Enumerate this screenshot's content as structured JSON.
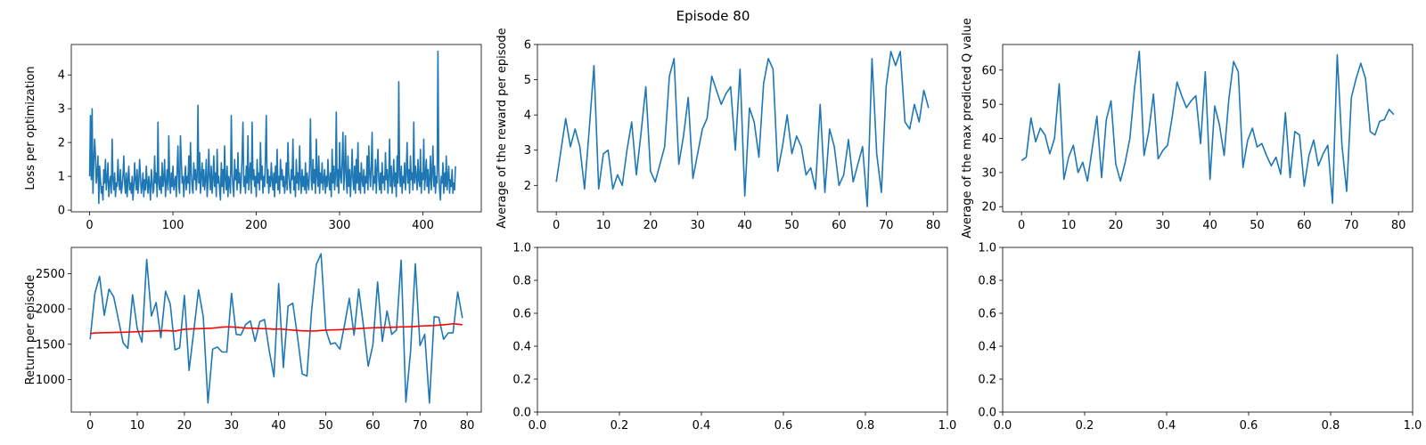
{
  "figure": {
    "suptitle": "Episode 80"
  },
  "style": {
    "series_color": "#1f77b4",
    "trend_color": "#ff0000"
  },
  "chart_data": [
    {
      "type": "line",
      "ylabel": "Loss per optimization",
      "xlim": [
        -22,
        470
      ],
      "ylim": [
        -0.05,
        4.9
      ],
      "xticks": [
        0,
        100,
        200,
        300,
        400
      ],
      "yticks": [
        0,
        1,
        2,
        3,
        4
      ],
      "series": [
        {
          "mode": "index",
          "values": [
            1.0,
            2.8,
            0.9,
            3.0,
            0.5,
            1.4,
            2.1,
            1.6,
            0.8,
            1.1,
            1.6,
            0.2,
            1.3,
            0.9,
            0.5,
            0.7,
            0.3,
            1.2,
            0.8,
            1.5,
            0.6,
            0.9,
            1.4,
            0.4,
            0.8,
            1.0,
            0.5,
            2.1,
            0.9,
            0.6,
            1.1,
            0.4,
            0.8,
            0.7,
            1.5,
            0.9,
            0.6,
            1.2,
            0.5,
            0.7,
            1.0,
            1.6,
            0.8,
            0.5,
            1.1,
            0.4,
            0.9,
            1.3,
            0.6,
            0.8,
            0.5,
            1.0,
            0.3,
            0.7,
            1.4,
            0.9,
            0.6,
            1.2,
            0.5,
            0.8,
            1.5,
            1.0,
            0.5,
            0.7,
            1.1,
            0.4,
            0.9,
            0.6,
            1.3,
            0.8,
            0.5,
            1.0,
            0.7,
            0.3,
            1.2,
            0.9,
            0.5,
            0.6,
            1.6,
            0.8,
            1.1,
            0.4,
            2.6,
            0.8,
            0.6,
            1.0,
            0.5,
            1.4,
            0.7,
            0.9,
            1.5,
            0.4,
            0.8,
            1.2,
            0.6,
            2.2,
            0.9,
            0.5,
            1.1,
            0.7,
            1.3,
            0.6,
            0.8,
            1.0,
            0.4,
            1.2,
            1.9,
            0.7,
            0.5,
            2.2,
            1.5,
            0.8,
            1.0,
            0.4,
            0.9,
            1.3,
            0.6,
            1.0,
            0.8,
            1.6,
            0.5,
            2.0,
            1.1,
            0.7,
            0.5,
            1.4,
            0.9,
            1.2,
            0.6,
            1.0,
            3.1,
            0.8,
            1.7,
            0.5,
            1.0,
            1.4,
            0.7,
            1.2,
            0.6,
            0.9,
            1.5,
            0.4,
            0.8,
            1.8,
            1.0,
            0.6,
            1.3,
            0.5,
            0.9,
            1.6,
            0.7,
            1.1,
            0.4,
            1.8,
            0.8,
            1.0,
            0.6,
            0.3,
            1.4,
            0.7,
            1.2,
            0.5,
            1.9,
            0.9,
            0.6,
            1.3,
            0.4,
            1.0,
            0.8,
            0.5,
            2.8,
            1.1,
            0.7,
            0.4,
            1.5,
            0.9,
            1.2,
            0.6,
            1.7,
            0.8,
            1.1,
            0.5,
            0.9,
            1.6,
            2.6,
            0.7,
            1.0,
            0.5,
            1.3,
            0.8,
            2.2,
            0.6,
            1.1,
            1.4,
            0.5,
            2.6,
            0.9,
            1.2,
            0.7,
            1.0,
            0.4,
            1.5,
            0.8,
            1.1,
            0.6,
            2.0,
            0.9,
            1.3,
            0.5,
            1.0,
            0.7,
            1.6,
            2.8,
            0.8,
            1.2,
            0.5,
            1.0,
            0.7,
            1.4,
            0.9,
            0.6,
            1.1,
            0.4,
            1.3,
            0.8,
            1.8,
            0.6,
            1.0,
            0.5,
            1.5,
            0.9,
            1.2,
            0.7,
            1.0,
            0.5,
            0.8,
            1.4,
            0.6,
            2.0,
            1.1,
            0.7,
            0.5,
            1.2,
            0.9,
            2.1,
            0.6,
            1.0,
            0.4,
            1.5,
            0.8,
            1.1,
            0.6,
            1.9,
            0.9,
            0.5,
            1.2,
            0.7,
            1.0,
            0.6,
            1.4,
            0.5,
            1.1,
            0.8,
            0.6,
            1.3,
            2.7,
            0.9,
            0.6,
            1.5,
            0.8,
            1.2,
            0.5,
            2.1,
            1.0,
            0.7,
            1.6,
            0.5,
            1.1,
            0.8,
            1.4,
            0.6,
            0.9,
            1.2,
            0.5,
            1.0,
            0.7,
            1.5,
            0.9,
            0.6,
            1.1,
            0.4,
            1.8,
            0.8,
            1.3,
            0.6,
            1.0,
            2.9,
            0.7,
            1.2,
            0.5,
            2.0,
            1.0,
            0.8,
            1.4,
            2.3,
            0.6,
            1.1,
            2.2,
            0.9,
            0.5,
            1.6,
            0.7,
            1.2,
            0.4,
            1.0,
            1.8,
            0.9,
            0.6,
            1.3,
            0.5,
            1.5,
            0.8,
            2.0,
            0.6,
            1.1,
            0.5,
            1.4,
            0.9,
            0.7,
            1.2,
            0.5,
            1.0,
            0.8,
            1.6,
            0.6,
            1.9,
            1.1,
            0.7,
            1.3,
            2.3,
            0.6,
            1.0,
            0.8,
            1.5,
            0.5,
            1.2,
            1.8,
            0.9,
            0.6,
            1.1,
            0.5,
            1.4,
            0.8,
            1.0,
            0.6,
            1.7,
            0.9,
            1.2,
            0.5,
            1.0,
            2.1,
            0.7,
            1.3,
            0.5,
            0.9,
            1.5,
            0.7,
            1.1,
            0.4,
            1.6,
            0.8,
            3.8,
            1.0,
            0.7,
            1.3,
            0.5,
            1.0,
            0.8,
            1.4,
            0.6,
            1.1,
            2.0,
            0.8,
            1.2,
            0.5,
            1.6,
            0.9,
            1.1,
            0.6,
            2.6,
            0.8,
            1.3,
            1.0,
            0.6,
            1.5,
            0.9,
            0.7,
            1.8,
            0.5,
            1.1,
            0.9,
            2.1,
            0.6,
            1.0,
            1.5,
            0.7,
            1.2,
            0.5,
            0.9,
            1.6,
            0.6,
            1.1,
            1.9,
            0.7,
            1.3,
            0.5,
            1.0,
            0.8,
            4.7,
            1.2,
            0.6,
            0.3,
            1.0,
            0.8,
            1.4,
            0.5,
            1.1,
            0.7,
            1.6,
            0.6,
            1.0,
            1.3,
            0.5,
            0.9,
            0.7,
            1.2,
            0.5,
            0.8,
            0.6,
            1.3
          ]
        }
      ]
    },
    {
      "type": "line",
      "ylabel": "Average of the reward per episode",
      "xlim": [
        -4,
        83
      ],
      "ylim": [
        1.25,
        6.0
      ],
      "xticks": [
        0,
        10,
        20,
        30,
        40,
        50,
        60,
        70,
        80
      ],
      "yticks": [
        2,
        3,
        4,
        5,
        6
      ],
      "series": [
        {
          "mode": "index",
          "values": [
            2.1,
            3.0,
            3.9,
            3.1,
            3.6,
            3.1,
            1.9,
            3.6,
            5.4,
            1.9,
            2.9,
            3.0,
            1.9,
            2.3,
            2.0,
            3.0,
            3.8,
            2.3,
            3.5,
            4.8,
            2.4,
            2.1,
            2.6,
            3.1,
            5.1,
            5.6,
            2.6,
            3.4,
            4.5,
            2.2,
            2.9,
            3.6,
            3.9,
            5.1,
            4.7,
            4.3,
            4.6,
            4.8,
            3.0,
            5.3,
            1.7,
            4.2,
            3.8,
            2.8,
            4.9,
            5.6,
            5.3,
            2.4,
            3.1,
            4.0,
            2.9,
            3.4,
            3.1,
            2.3,
            2.5,
            1.9,
            4.3,
            1.8,
            3.6,
            3.1,
            2.0,
            2.3,
            3.3,
            2.1,
            2.6,
            3.1,
            1.4,
            5.6,
            2.9,
            1.8,
            4.8,
            5.8,
            5.4,
            5.8,
            3.8,
            3.6,
            4.3,
            3.8,
            4.7,
            4.2
          ]
        }
      ]
    },
    {
      "type": "line",
      "ylabel": "Average of the max predicted Q value",
      "xlim": [
        -4,
        83
      ],
      "ylim": [
        18.5,
        67.5
      ],
      "xticks": [
        0,
        10,
        20,
        30,
        40,
        50,
        60,
        70,
        80
      ],
      "yticks": [
        20,
        30,
        40,
        50,
        60
      ],
      "series": [
        {
          "mode": "index",
          "values": [
            33.5,
            34.5,
            46.0,
            39.0,
            43.0,
            41.0,
            35.5,
            40.0,
            56.0,
            28.0,
            34.5,
            38.0,
            30.0,
            33.0,
            27.5,
            37.0,
            46.5,
            28.5,
            45.5,
            51.0,
            32.5,
            27.5,
            33.0,
            40.0,
            55.0,
            65.5,
            35.0,
            42.0,
            53.0,
            34.0,
            36.5,
            38.0,
            46.5,
            56.5,
            52.5,
            49.0,
            51.0,
            52.5,
            38.5,
            59.5,
            28.0,
            49.5,
            44.0,
            35.0,
            51.5,
            62.5,
            59.5,
            31.5,
            39.5,
            43.0,
            37.5,
            38.5,
            35.0,
            32.0,
            34.5,
            29.5,
            47.5,
            28.5,
            42.0,
            41.0,
            26.0,
            35.0,
            39.5,
            32.0,
            35.5,
            38.0,
            21.0,
            64.5,
            38.0,
            24.5,
            52.0,
            57.5,
            62.0,
            57.5,
            42.0,
            41.0,
            45.0,
            45.5,
            48.5,
            47.0
          ]
        }
      ]
    },
    {
      "type": "line",
      "ylabel": "Return per episode",
      "xlim": [
        -4,
        83
      ],
      "ylim": [
        540,
        2870
      ],
      "xticks": [
        0,
        10,
        20,
        30,
        40,
        50,
        60,
        70,
        80
      ],
      "yticks": [
        1000,
        1500,
        2000,
        2500
      ],
      "series": [
        {
          "role": "raw",
          "mode": "index",
          "values": [
            1570,
            2220,
            2460,
            1910,
            2280,
            2170,
            1850,
            1520,
            1440,
            2200,
            1720,
            1530,
            2700,
            1900,
            2090,
            1590,
            2250,
            2070,
            1420,
            1450,
            2190,
            1130,
            1690,
            2270,
            1890,
            670,
            1430,
            1460,
            1390,
            1390,
            2220,
            1640,
            1630,
            1780,
            1830,
            1540,
            1820,
            1850,
            1410,
            1040,
            2360,
            1170,
            2040,
            2080,
            1610,
            1080,
            1050,
            1980,
            2630,
            2780,
            1710,
            1500,
            1520,
            1430,
            1780,
            2150,
            1630,
            2280,
            1760,
            1190,
            1490,
            2380,
            1540,
            1970,
            1640,
            1700,
            2690,
            680,
            1400,
            2640,
            1480,
            1640,
            670,
            1890,
            1880,
            1570,
            1660,
            1660,
            2240,
            1870
          ]
        },
        {
          "role": "trend",
          "mode": "index",
          "values": [
            1650,
            1660,
            1661,
            1663,
            1665,
            1667,
            1668,
            1670,
            1672,
            1675,
            1677,
            1680,
            1684,
            1686,
            1688,
            1690,
            1693,
            1690,
            1685,
            1700,
            1712,
            1715,
            1718,
            1720,
            1722,
            1725,
            1728,
            1735,
            1742,
            1745,
            1743,
            1740,
            1735,
            1730,
            1728,
            1725,
            1722,
            1720,
            1718,
            1712,
            1716,
            1712,
            1705,
            1700,
            1695,
            1690,
            1688,
            1686,
            1688,
            1695,
            1700,
            1702,
            1704,
            1706,
            1710,
            1715,
            1718,
            1722,
            1726,
            1730,
            1732,
            1734,
            1736,
            1738,
            1740,
            1742,
            1745,
            1746,
            1748,
            1752,
            1757,
            1760,
            1762,
            1765,
            1770,
            1775,
            1782,
            1790,
            1785,
            1775
          ]
        }
      ]
    },
    {
      "type": "line",
      "empty": true,
      "xlim": [
        0,
        1
      ],
      "ylim": [
        0,
        1
      ],
      "xtick_labels": [
        "0.0",
        "0.2",
        "0.4",
        "0.6",
        "0.8",
        "1.0"
      ],
      "ytick_labels": [
        "0.0",
        "0.2",
        "0.4",
        "0.6",
        "0.8",
        "1.0"
      ]
    },
    {
      "type": "line",
      "empty": true,
      "xlim": [
        0,
        1
      ],
      "ylim": [
        0,
        1
      ],
      "xtick_labels": [
        "0.0",
        "0.2",
        "0.4",
        "0.6",
        "0.8",
        "1.0"
      ],
      "ytick_labels": [
        "0.0",
        "0.2",
        "0.4",
        "0.6",
        "0.8",
        "1.0"
      ]
    }
  ]
}
